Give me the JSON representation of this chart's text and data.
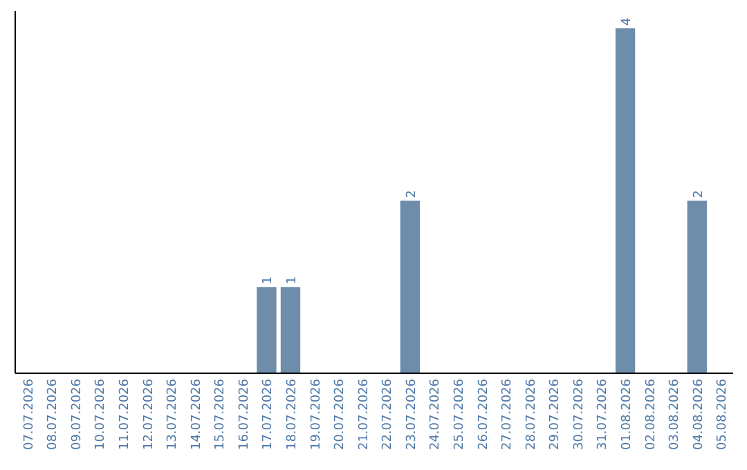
{
  "chart_data": {
    "type": "bar",
    "categories": [
      "07.07.2026",
      "08.07.2026",
      "09.07.2026",
      "10.07.2026",
      "11.07.2026",
      "12.07.2026",
      "13.07.2026",
      "14.07.2026",
      "15.07.2026",
      "16.07.2026",
      "17.07.2026",
      "18.07.2026",
      "19.07.2026",
      "20.07.2026",
      "21.07.2026",
      "22.07.2026",
      "23.07.2026",
      "24.07.2026",
      "25.07.2026",
      "26.07.2026",
      "27.07.2026",
      "28.07.2026",
      "29.07.2026",
      "30.07.2026",
      "31.07.2026",
      "01.08.2026",
      "02.08.2026",
      "03.08.2026",
      "04.08.2026",
      "05.08.2026"
    ],
    "values": [
      0,
      0,
      0,
      0,
      0,
      0,
      0,
      0,
      0,
      0,
      1,
      1,
      0,
      0,
      0,
      0,
      2,
      0,
      0,
      0,
      0,
      0,
      0,
      0,
      0,
      4,
      0,
      0,
      2,
      0
    ],
    "value_labels": [
      null,
      null,
      null,
      null,
      null,
      null,
      null,
      null,
      null,
      null,
      "1",
      "1",
      null,
      null,
      null,
      null,
      "2",
      null,
      null,
      null,
      null,
      null,
      null,
      null,
      null,
      "4",
      null,
      null,
      "2",
      null
    ],
    "color": "#6d8dab",
    "tick_labels": "x"
  }
}
